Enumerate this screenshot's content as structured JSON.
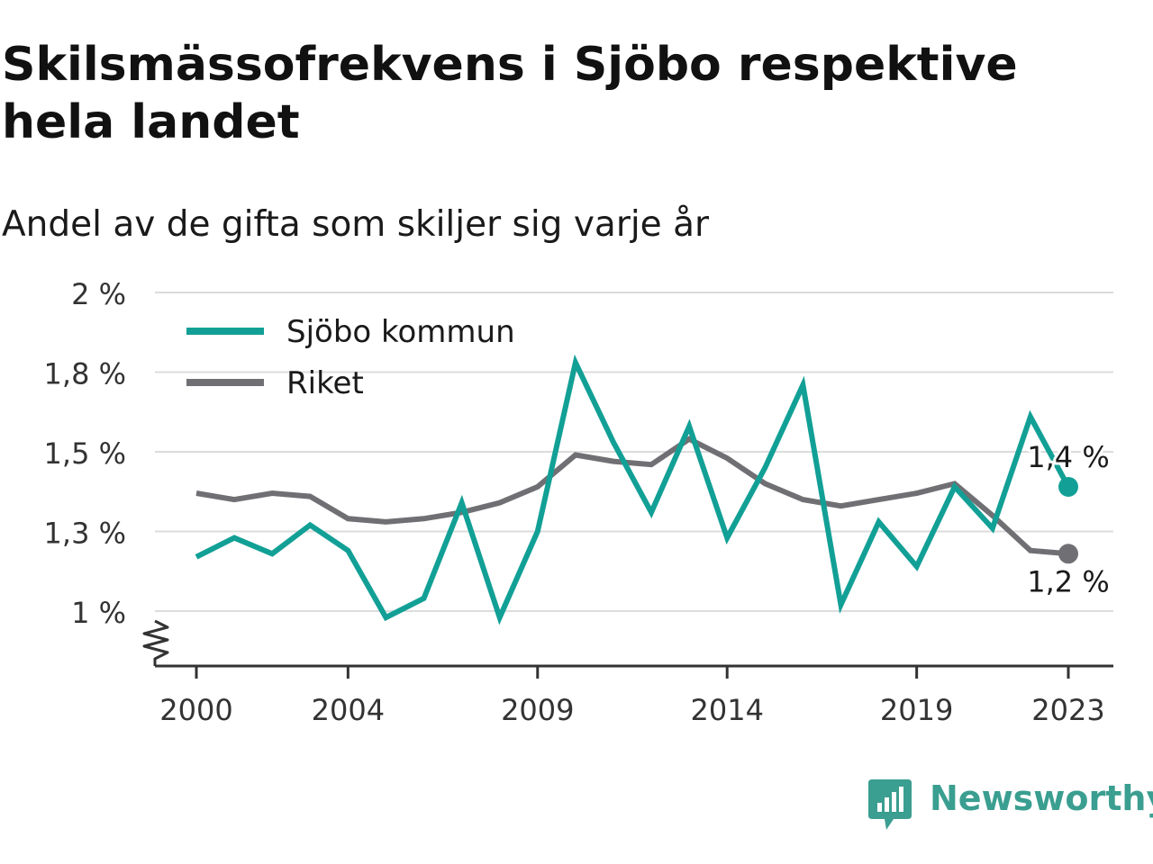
{
  "title": "Skilsmässofrekvens i Sjöbo respektive hela landet",
  "subtitle": "Andel av de gifta som skiljer sig varje år",
  "brand": {
    "name": "Newsworthy",
    "color": "#3a9e90",
    "icon": "newsworthy-logo-icon"
  },
  "chart_data": {
    "type": "line",
    "title": "Skilsmässofrekvens i Sjöbo respektive hela landet",
    "subtitle": "Andel av de gifta som skiljer sig varje år",
    "xlabel": "",
    "ylabel": "",
    "x": [
      2000,
      2001,
      2002,
      2003,
      2004,
      2005,
      2006,
      2007,
      2008,
      2009,
      2010,
      2011,
      2012,
      2013,
      2014,
      2015,
      2016,
      2017,
      2018,
      2019,
      2020,
      2021,
      2022,
      2023
    ],
    "x_ticks": [
      2000,
      2004,
      2009,
      2014,
      2019,
      2023
    ],
    "x_tick_labels": [
      "2000",
      "2004",
      "2009",
      "2014",
      "2019",
      "2023"
    ],
    "xlim": [
      1999,
      2024.2
    ],
    "y_ticks": [
      1.0,
      1.25,
      1.5,
      1.75,
      2.0
    ],
    "y_tick_labels": [
      "1 %",
      "1,3 %",
      "1,5 %",
      "1,8 %",
      "2 %"
    ],
    "ylim": [
      0.83,
      2.0
    ],
    "y_axis_break": true,
    "grid": true,
    "legend_position": "top-left",
    "series": [
      {
        "name": "Sjöbo kommun",
        "color": "#12a096",
        "values": [
          1.17,
          1.23,
          1.18,
          1.27,
          1.19,
          0.98,
          1.04,
          1.34,
          0.98,
          1.25,
          1.78,
          1.53,
          1.31,
          1.58,
          1.23,
          1.45,
          1.71,
          1.02,
          1.28,
          1.14,
          1.39,
          1.26,
          1.61,
          1.39
        ],
        "end_label": "1,4 %"
      },
      {
        "name": "Riket",
        "color": "#707074",
        "values": [
          1.37,
          1.35,
          1.37,
          1.36,
          1.29,
          1.28,
          1.29,
          1.31,
          1.34,
          1.39,
          1.49,
          1.47,
          1.46,
          1.54,
          1.48,
          1.4,
          1.35,
          1.33,
          1.35,
          1.37,
          1.4,
          1.3,
          1.19,
          1.18
        ],
        "end_label": "1,2 %"
      }
    ]
  }
}
